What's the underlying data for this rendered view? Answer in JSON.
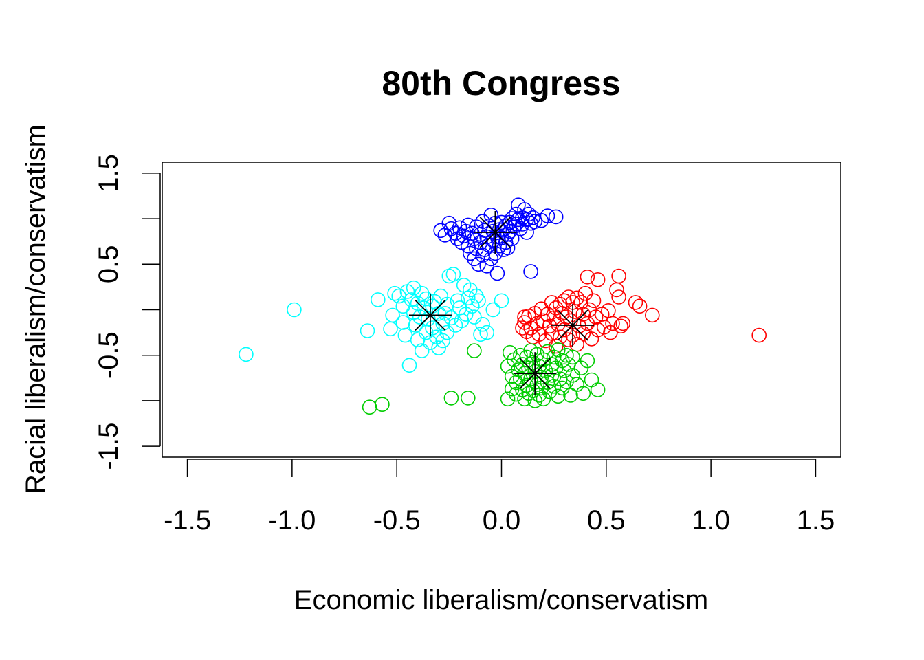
{
  "chart_data": {
    "type": "scatter",
    "title": "80th Congress",
    "xlabel": "Economic liberalism/conservatism",
    "ylabel": "Racial liberalism/conservatism",
    "xlim": [
      -1.62,
      1.62
    ],
    "ylim": [
      -1.62,
      1.62
    ],
    "x_ticks": [
      -1.5,
      -1.0,
      -0.5,
      0.0,
      0.5,
      1.0,
      1.5
    ],
    "x_tick_labels": [
      "-1.5",
      "-1.0",
      "-0.5",
      "0.0",
      "0.5",
      "1.0",
      "1.5"
    ],
    "y_ticks": [
      -1.5,
      -1.0,
      -0.5,
      0.0,
      0.5,
      1.0,
      1.5
    ],
    "y_tick_labels": [
      "-1.5",
      "",
      "-0.5",
      "",
      "0.5",
      "",
      "1.5"
    ],
    "grid": false,
    "marker": "open-circle",
    "series": [
      {
        "color": "#0000ff",
        "points": [
          [
            -0.29,
            0.87
          ],
          [
            -0.27,
            0.82
          ],
          [
            -0.25,
            0.95
          ],
          [
            -0.24,
            0.89
          ],
          [
            -0.22,
            0.84
          ],
          [
            -0.21,
            0.78
          ],
          [
            -0.2,
            0.9
          ],
          [
            -0.19,
            0.74
          ],
          [
            -0.18,
            0.81
          ],
          [
            -0.17,
            0.86
          ],
          [
            -0.16,
            0.93
          ],
          [
            -0.16,
            0.7
          ],
          [
            -0.15,
            0.62
          ],
          [
            -0.14,
            0.84
          ],
          [
            -0.13,
            0.78
          ],
          [
            -0.13,
            0.56
          ],
          [
            -0.12,
            0.91
          ],
          [
            -0.12,
            0.67
          ],
          [
            -0.11,
            0.5
          ],
          [
            -0.1,
            0.83
          ],
          [
            -0.1,
            0.74
          ],
          [
            -0.09,
            0.6
          ],
          [
            -0.09,
            0.97
          ],
          [
            -0.08,
            0.87
          ],
          [
            -0.08,
            0.66
          ],
          [
            -0.07,
            0.48
          ],
          [
            -0.07,
            0.8
          ],
          [
            -0.06,
            0.92
          ],
          [
            -0.06,
            0.71
          ],
          [
            -0.05,
            1.04
          ],
          [
            -0.05,
            0.56
          ],
          [
            -0.04,
            0.86
          ],
          [
            -0.04,
            0.76
          ],
          [
            -0.03,
            0.62
          ],
          [
            -0.03,
            0.95
          ],
          [
            -0.02,
            0.8
          ],
          [
            -0.02,
            0.4
          ],
          [
            -0.01,
            0.88
          ],
          [
            -0.01,
            0.7
          ],
          [
            0.0,
            0.96
          ],
          [
            0.0,
            0.79
          ],
          [
            0.01,
            0.66
          ],
          [
            0.01,
            0.88
          ],
          [
            0.02,
            0.92
          ],
          [
            0.02,
            0.74
          ],
          [
            0.03,
            0.83
          ],
          [
            0.03,
            0.68
          ],
          [
            0.04,
            0.96
          ],
          [
            0.04,
            0.86
          ],
          [
            0.05,
            1.0
          ],
          [
            0.05,
            0.78
          ],
          [
            0.06,
            0.91
          ],
          [
            0.07,
            1.05
          ],
          [
            0.07,
            0.94
          ],
          [
            0.08,
            0.99
          ],
          [
            0.08,
            1.15
          ],
          [
            0.09,
            0.89
          ],
          [
            0.1,
            1.01
          ],
          [
            0.1,
            0.94
          ],
          [
            0.11,
            1.1
          ],
          [
            0.12,
            0.99
          ],
          [
            0.12,
            0.85
          ],
          [
            0.13,
            1.05
          ],
          [
            0.14,
            0.95
          ],
          [
            0.15,
            1.01
          ],
          [
            0.16,
            0.97
          ],
          [
            0.19,
            0.98
          ],
          [
            0.22,
            1.03
          ],
          [
            0.26,
            1.02
          ],
          [
            0.14,
            0.42
          ]
        ]
      },
      {
        "color": "#00ffff",
        "points": [
          [
            -1.22,
            -0.49
          ],
          [
            -0.99,
            0.0
          ],
          [
            -0.64,
            -0.23
          ],
          [
            -0.59,
            0.11
          ],
          [
            -0.53,
            -0.21
          ],
          [
            -0.52,
            -0.06
          ],
          [
            -0.51,
            0.18
          ],
          [
            -0.49,
            0.15
          ],
          [
            -0.47,
            -0.14
          ],
          [
            -0.47,
            0.04
          ],
          [
            -0.46,
            -0.28
          ],
          [
            -0.45,
            0.2
          ],
          [
            -0.44,
            -0.61
          ],
          [
            -0.43,
            0.11
          ],
          [
            -0.42,
            -0.03
          ],
          [
            -0.42,
            0.24
          ],
          [
            -0.41,
            -0.17
          ],
          [
            -0.4,
            0.07
          ],
          [
            -0.4,
            -0.33
          ],
          [
            -0.39,
            -0.08
          ],
          [
            -0.38,
            0.18
          ],
          [
            -0.38,
            -0.45
          ],
          [
            -0.37,
            0.02
          ],
          [
            -0.36,
            -0.25
          ],
          [
            -0.36,
            0.12
          ],
          [
            -0.35,
            -0.1
          ],
          [
            -0.34,
            -0.36
          ],
          [
            -0.33,
            0.04
          ],
          [
            -0.33,
            -0.2
          ],
          [
            -0.32,
            0.09
          ],
          [
            -0.31,
            -0.3
          ],
          [
            -0.3,
            -0.04
          ],
          [
            -0.3,
            -0.42
          ],
          [
            -0.29,
            0.15
          ],
          [
            -0.28,
            -0.15
          ],
          [
            -0.28,
            -0.34
          ],
          [
            -0.27,
            -0.04
          ],
          [
            -0.26,
            0.06
          ],
          [
            -0.26,
            -0.25
          ],
          [
            -0.25,
            0.37
          ],
          [
            -0.24,
            -0.09
          ],
          [
            -0.23,
            0.39
          ],
          [
            -0.22,
            -0.17
          ],
          [
            -0.21,
            0.1
          ],
          [
            -0.2,
            0.02
          ],
          [
            -0.19,
            -0.12
          ],
          [
            -0.18,
            0.27
          ],
          [
            -0.17,
            -0.05
          ],
          [
            -0.16,
            0.13
          ],
          [
            -0.15,
            0.22
          ],
          [
            -0.14,
            0.04
          ],
          [
            -0.13,
            -0.08
          ],
          [
            -0.12,
            0.15
          ],
          [
            -0.11,
            0.1
          ],
          [
            -0.1,
            -0.27
          ],
          [
            -0.09,
            -0.16
          ],
          [
            -0.07,
            -0.25
          ],
          [
            -0.04,
            0.0
          ],
          [
            0.0,
            0.1
          ]
        ]
      },
      {
        "color": "#ff0000",
        "points": [
          [
            1.23,
            -0.28
          ],
          [
            0.72,
            -0.06
          ],
          [
            0.66,
            0.04
          ],
          [
            0.64,
            0.08
          ],
          [
            0.58,
            -0.15
          ],
          [
            0.57,
            -0.18
          ],
          [
            0.56,
            0.14
          ],
          [
            0.56,
            0.37
          ],
          [
            0.55,
            0.22
          ],
          [
            0.53,
            -0.15
          ],
          [
            0.52,
            -0.25
          ],
          [
            0.51,
            -0.01
          ],
          [
            0.49,
            -0.19
          ],
          [
            0.48,
            -0.05
          ],
          [
            0.46,
            0.33
          ],
          [
            0.46,
            -0.22
          ],
          [
            0.45,
            -0.08
          ],
          [
            0.44,
            0.1
          ],
          [
            0.43,
            -0.32
          ],
          [
            0.42,
            0.0
          ],
          [
            0.41,
            0.36
          ],
          [
            0.41,
            -0.15
          ],
          [
            0.4,
            0.18
          ],
          [
            0.39,
            -0.05
          ],
          [
            0.39,
            -0.26
          ],
          [
            0.38,
            0.08
          ],
          [
            0.37,
            -0.18
          ],
          [
            0.36,
            0.13
          ],
          [
            0.36,
            -0.38
          ],
          [
            0.35,
            -0.02
          ],
          [
            0.34,
            -0.28
          ],
          [
            0.34,
            0.08
          ],
          [
            0.33,
            -0.12
          ],
          [
            0.32,
            0.14
          ],
          [
            0.32,
            -0.33
          ],
          [
            0.31,
            -0.08
          ],
          [
            0.3,
            0.1
          ],
          [
            0.3,
            -0.22
          ],
          [
            0.29,
            -0.04
          ],
          [
            0.28,
            0.06
          ],
          [
            0.28,
            -0.3
          ],
          [
            0.27,
            -0.16
          ],
          [
            0.26,
            0.02
          ],
          [
            0.26,
            -0.4
          ],
          [
            0.25,
            -0.09
          ],
          [
            0.24,
            -0.26
          ],
          [
            0.24,
            0.08
          ],
          [
            0.23,
            -0.18
          ],
          [
            0.22,
            -0.05
          ],
          [
            0.21,
            -0.34
          ],
          [
            0.2,
            -0.12
          ],
          [
            0.19,
            0.01
          ],
          [
            0.18,
            -0.27
          ],
          [
            0.17,
            -0.15
          ],
          [
            0.16,
            -0.04
          ],
          [
            0.15,
            -0.3
          ],
          [
            0.14,
            -0.2
          ],
          [
            0.13,
            -0.07
          ],
          [
            0.12,
            -0.24
          ],
          [
            0.11,
            -0.14
          ],
          [
            0.11,
            -0.08
          ],
          [
            0.1,
            -0.2
          ]
        ]
      },
      {
        "color": "#00cd00",
        "points": [
          [
            -0.63,
            -1.07
          ],
          [
            -0.57,
            -1.04
          ],
          [
            -0.24,
            -0.97
          ],
          [
            -0.16,
            -0.97
          ],
          [
            -0.13,
            -0.45
          ],
          [
            0.03,
            -0.62
          ],
          [
            0.03,
            -0.98
          ],
          [
            0.04,
            -0.47
          ],
          [
            0.05,
            -0.73
          ],
          [
            0.05,
            -0.87
          ],
          [
            0.06,
            -0.55
          ],
          [
            0.07,
            -0.8
          ],
          [
            0.07,
            -0.93
          ],
          [
            0.08,
            -0.66
          ],
          [
            0.09,
            -0.5
          ],
          [
            0.09,
            -0.76
          ],
          [
            0.1,
            -0.88
          ],
          [
            0.1,
            -0.6
          ],
          [
            0.11,
            -0.98
          ],
          [
            0.11,
            -0.7
          ],
          [
            0.12,
            -0.52
          ],
          [
            0.12,
            -0.83
          ],
          [
            0.13,
            -0.64
          ],
          [
            0.13,
            -0.92
          ],
          [
            0.14,
            -0.45
          ],
          [
            0.14,
            -0.76
          ],
          [
            0.15,
            -0.58
          ],
          [
            0.15,
            -0.89
          ],
          [
            0.16,
            -1.0
          ],
          [
            0.16,
            -0.68
          ],
          [
            0.17,
            -0.82
          ],
          [
            0.17,
            -0.49
          ],
          [
            0.18,
            -0.94
          ],
          [
            0.18,
            -0.62
          ],
          [
            0.19,
            -0.74
          ],
          [
            0.19,
            -0.86
          ],
          [
            0.2,
            -0.55
          ],
          [
            0.2,
            -0.98
          ],
          [
            0.21,
            -0.67
          ],
          [
            0.22,
            -0.8
          ],
          [
            0.22,
            -0.46
          ],
          [
            0.23,
            -0.9
          ],
          [
            0.24,
            -0.6
          ],
          [
            0.24,
            -0.72
          ],
          [
            0.25,
            -0.52
          ],
          [
            0.25,
            -0.84
          ],
          [
            0.26,
            -0.64
          ],
          [
            0.27,
            -0.95
          ],
          [
            0.27,
            -0.44
          ],
          [
            0.28,
            -0.76
          ],
          [
            0.29,
            -0.56
          ],
          [
            0.29,
            -0.86
          ],
          [
            0.3,
            -0.67
          ],
          [
            0.31,
            -0.5
          ],
          [
            0.31,
            -0.79
          ],
          [
            0.32,
            -0.6
          ],
          [
            0.33,
            -0.94
          ],
          [
            0.34,
            -0.72
          ],
          [
            0.34,
            -0.52
          ],
          [
            0.36,
            -0.82
          ],
          [
            0.38,
            -0.64
          ],
          [
            0.39,
            -0.92
          ],
          [
            0.41,
            -0.56
          ],
          [
            0.43,
            -0.77
          ],
          [
            0.46,
            -0.88
          ]
        ]
      }
    ],
    "centers": [
      {
        "x": -0.03,
        "y": 0.85,
        "marker": "asterisk",
        "color": "#000000"
      },
      {
        "x": -0.34,
        "y": -0.06,
        "marker": "asterisk",
        "color": "#000000"
      },
      {
        "x": 0.34,
        "y": -0.17,
        "marker": "asterisk",
        "color": "#000000"
      },
      {
        "x": 0.16,
        "y": -0.7,
        "marker": "asterisk",
        "color": "#000000"
      }
    ]
  }
}
